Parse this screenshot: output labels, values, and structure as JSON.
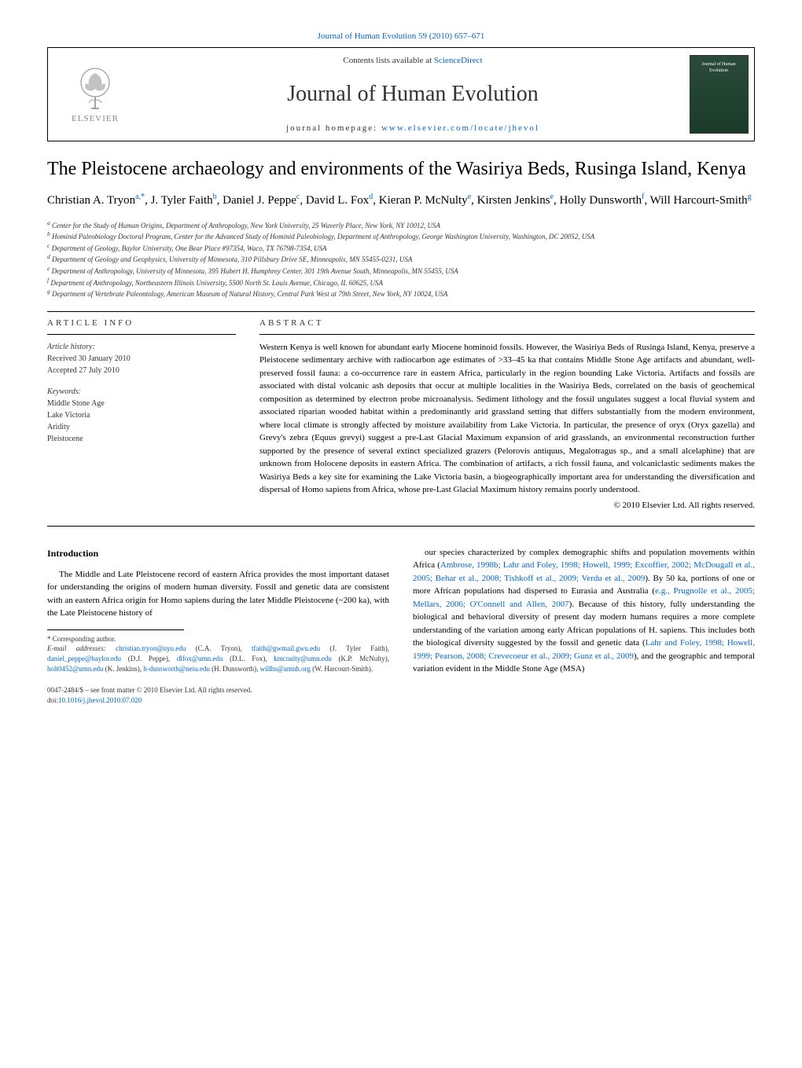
{
  "journal_ref": {
    "text": "Journal of Human Evolution 59 (2010) 657–671",
    "link_text": "Journal of Human Evolution 59 (2010) 657"
  },
  "header": {
    "contents_text": "Contents lists available at ",
    "contents_link": "ScienceDirect",
    "journal_title": "Journal of Human Evolution",
    "homepage_label": "journal homepage: ",
    "homepage_url": "www.elsevier.com/locate/jhevol",
    "publisher": "ELSEVIER",
    "cover_title": "Journal of Human Evolution"
  },
  "article": {
    "title": "The Pleistocene archaeology and environments of the Wasiriya Beds, Rusinga Island, Kenya",
    "authors_html": "Christian A. Tryon|a,*|, J. Tyler Faith|b|, Daniel J. Peppe|c|, David L. Fox|d|, Kieran P. McNulty|e|, Kirsten Jenkins|e|, Holly Dunsworth|f|, Will Harcourt-Smith|g|"
  },
  "affiliations": [
    "a Center for the Study of Human Origins, Department of Anthropology, New York University, 25 Waverly Place, New York, NY 10012, USA",
    "b Hominid Paleobiology Doctoral Program, Center for the Advanced Study of Hominid Paleobiology, Department of Anthropology, George Washington University, Washington, DC 20052, USA",
    "c Department of Geology, Baylor University, One Bear Place #97354, Waco, TX 76798-7354, USA",
    "d Department of Geology and Geophysics, University of Minnesota, 310 Pillsbury Drive SE, Minneapolis, MN 55455-0231, USA",
    "e Department of Anthropology, University of Minnesota, 395 Hubert H. Humphrey Center, 301 19th Avenue South, Minneapolis, MN 55455, USA",
    "f Department of Anthropology, Northeastern Illinois University, 5500 North St. Louis Avenue, Chicago, IL 60625, USA",
    "g Department of Vertebrate Paleontology, American Museum of Natural History, Central Park West at 79th Street, New York, NY 10024, USA"
  ],
  "info": {
    "heading": "ARTICLE INFO",
    "history_label": "Article history:",
    "received": "Received 30 January 2010",
    "accepted": "Accepted 27 July 2010",
    "keywords_label": "Keywords:",
    "keywords": [
      "Middle Stone Age",
      "Lake Victoria",
      "Aridity",
      "Pleistocene"
    ]
  },
  "abstract": {
    "heading": "ABSTRACT",
    "text": "Western Kenya is well known for abundant early Miocene hominoid fossils. However, the Wasiriya Beds of Rusinga Island, Kenya, preserve a Pleistocene sedimentary archive with radiocarbon age estimates of >33–45 ka that contains Middle Stone Age artifacts and abundant, well-preserved fossil fauna: a co-occurrence rare in eastern Africa, particularly in the region bounding Lake Victoria. Artifacts and fossils are associated with distal volcanic ash deposits that occur at multiple localities in the Wasiriya Beds, correlated on the basis of geochemical composition as determined by electron probe microanalysis. Sediment lithology and the fossil ungulates suggest a local fluvial system and associated riparian wooded habitat within a predominantly arid grassland setting that differs substantially from the modern environment, where local climate is strongly affected by moisture availability from Lake Victoria. In particular, the presence of oryx (Oryx gazella) and Grevy's zebra (Equus grevyi) suggest a pre-Last Glacial Maximum expansion of arid grasslands, an environmental reconstruction further supported by the presence of several extinct specialized grazers (Pelorovis antiquus, Megalotragus sp., and a small alcelaphine) that are unknown from Holocene deposits in eastern Africa. The combination of artifacts, a rich fossil fauna, and volcaniclastic sediments makes the Wasiriya Beds a key site for examining the Lake Victoria basin, a biogeographically important area for understanding the diversification and dispersal of Homo sapiens from Africa, whose pre-Last Glacial Maximum history remains poorly understood.",
    "copyright": "© 2010 Elsevier Ltd. All rights reserved."
  },
  "body": {
    "section_heading": "Introduction",
    "left_para": "The Middle and Late Pleistocene record of eastern Africa provides the most important dataset for understanding the origins of modern human diversity. Fossil and genetic data are consistent with an eastern Africa origin for Homo sapiens during the later Middle Pleistocene (~200 ka), with the Late Pleistocene history of",
    "right_para": "our species characterized by complex demographic shifts and population movements within Africa (Ambrose, 1998b; Lahr and Foley, 1998; Howell, 1999; Excoffier, 2002; McDougall et al., 2005; Behar et al., 2008; Tishkoff et al., 2009; Verdu et al., 2009). By 50 ka, portions of one or more African populations had dispersed to Eurasia and Australia (e.g., Prugnolle et al., 2005; Mellars, 2006; O'Connell and Allen, 2007). Because of this history, fully understanding the biological and behavioral diversity of present day modern humans requires a more complete understanding of the variation among early African populations of H. sapiens. This includes both the biological diversity suggested by the fossil and genetic data (Lahr and Foley, 1998; Howell, 1999; Pearson, 2008; Crevecoeur et al., 2009; Gunz et al., 2009), and the geographic and temporal variation evident in the Middle Stone Age (MSA)"
  },
  "footnote": {
    "corresponding": "* Corresponding author.",
    "emails_label": "E-mail addresses: ",
    "emails": "christian.tryon@nyu.edu (C.A. Tryon), tfaith@gwmail.gwu.edu (J. Tyler Faith), daniel_peppe@baylor.edu (D.J. Peppe), dlfox@umn.edu (D.L. Fox), kmcnulty@umn.edu (K.P. McNulty), holt0452@umn.edu (K. Jenkins), h-dunsworth@neiu.edu (H. Dunsworth), willhs@amnh.org (W. Harcourt-Smith)."
  },
  "footer": {
    "issn": "0047-2484/$ – see front matter © 2010 Elsevier Ltd. All rights reserved.",
    "doi_label": "doi:",
    "doi": "10.1016/j.jhevol.2010.07.020"
  },
  "colors": {
    "link": "#0066cc",
    "text": "#000000",
    "muted": "#333333",
    "background": "#ffffff"
  }
}
